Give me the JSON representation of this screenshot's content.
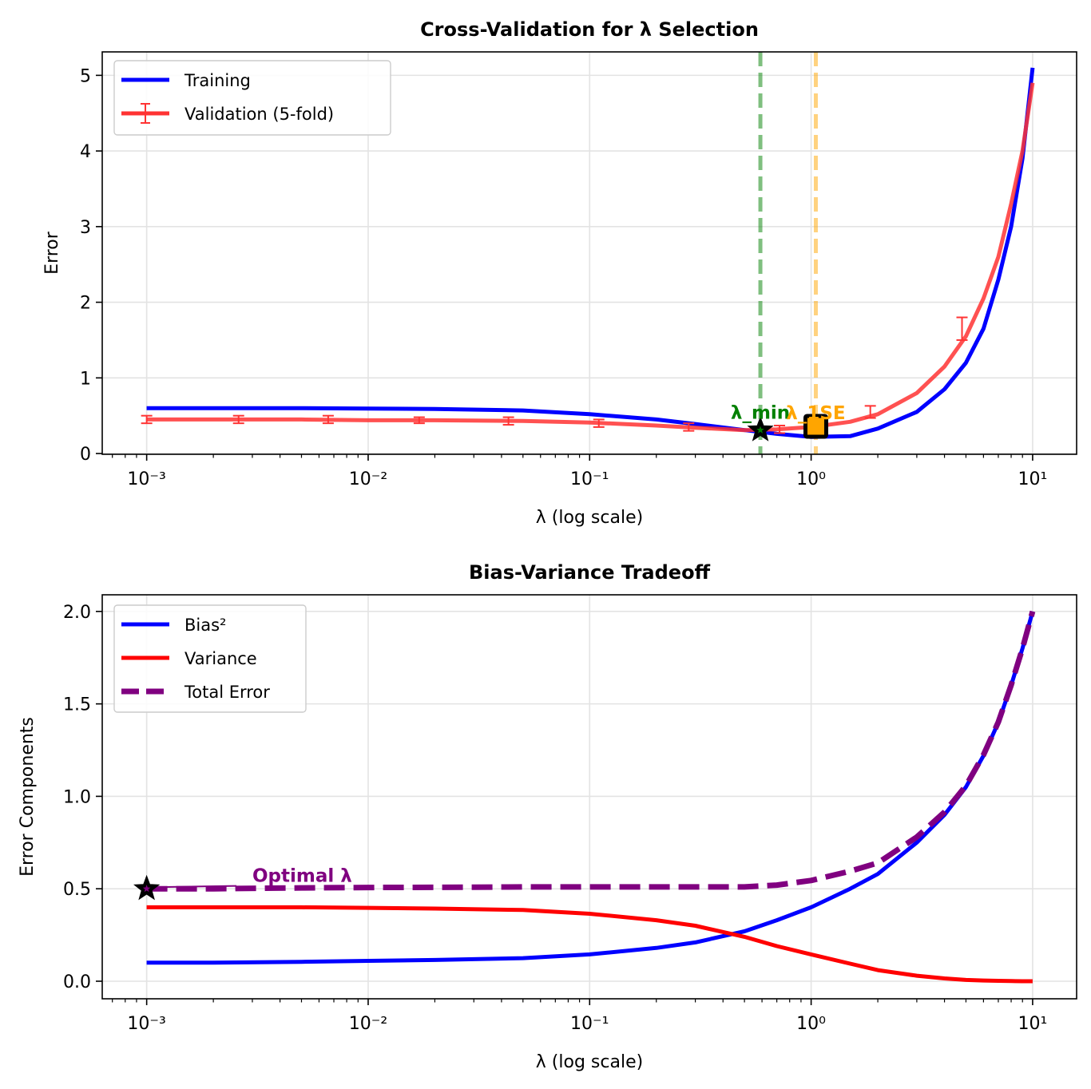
{
  "chart_data": [
    {
      "type": "line",
      "title": "Cross-Validation for λ Selection",
      "xlabel": "λ (log scale)",
      "ylabel": "Error",
      "xscale": "log",
      "xlim": [
        0.00063,
        15.8
      ],
      "ylim": [
        -0.01,
        5.31
      ],
      "xticks": [
        0.001,
        0.01,
        0.1,
        1,
        10
      ],
      "xtick_labels": [
        "10⁻³",
        "10⁻²",
        "10⁻¹",
        "10⁰",
        "10¹"
      ],
      "yticks": [
        0,
        1,
        2,
        3,
        4,
        5
      ],
      "ytick_labels": [
        "0",
        "1",
        "2",
        "3",
        "4",
        "5"
      ],
      "grid": true,
      "legend_position": "top-left",
      "x": [
        0.001,
        0.002,
        0.005,
        0.01,
        0.02,
        0.05,
        0.1,
        0.2,
        0.3,
        0.5,
        0.7,
        1,
        1.5,
        2,
        3,
        4,
        5,
        6,
        7,
        8,
        9,
        10
      ],
      "series": [
        {
          "name": "Training",
          "color": "#0000ff",
          "values": [
            0.6,
            0.6,
            0.6,
            0.595,
            0.59,
            0.57,
            0.52,
            0.45,
            0.39,
            0.31,
            0.26,
            0.22,
            0.23,
            0.33,
            0.55,
            0.85,
            1.2,
            1.65,
            2.3,
            3.0,
            3.9,
            5.1
          ]
        },
        {
          "name": "Validation (5-fold)",
          "color": "#ff3333",
          "values": [
            0.45,
            0.45,
            0.45,
            0.44,
            0.44,
            0.43,
            0.41,
            0.37,
            0.34,
            0.31,
            0.32,
            0.35,
            0.42,
            0.52,
            0.8,
            1.15,
            1.55,
            2.05,
            2.6,
            3.3,
            4.0,
            4.9
          ],
          "errorbars": {
            "x": [
              0.001,
              0.0026,
              0.0066,
              0.017,
              0.043,
              0.11,
              0.28,
              0.72,
              1.85,
              4.8
            ],
            "y": [
              0.45,
              0.45,
              0.45,
              0.44,
              0.43,
              0.4,
              0.35,
              0.32,
              0.55,
              1.65
            ],
            "err": [
              0.05,
              0.05,
              0.05,
              0.04,
              0.05,
              0.05,
              0.05,
              0.05,
              0.08,
              0.15
            ]
          }
        }
      ],
      "vlines": [
        {
          "x": 0.59,
          "color": "#008000",
          "name": "λ_min line"
        },
        {
          "x": 1.05,
          "color": "#ffa500",
          "name": "λ_1SE line"
        }
      ],
      "annotations": [
        {
          "text": "λ_min",
          "x": 0.59,
          "y": 0.31,
          "color": "#008000",
          "marker": "star"
        },
        {
          "text": "λ_1SE",
          "x": 1.05,
          "y": 0.36,
          "color": "#ffa500",
          "marker": "square"
        }
      ]
    },
    {
      "type": "line",
      "title": "Bias-Variance Tradeoff",
      "xlabel": "λ (log scale)",
      "ylabel": "Error Components",
      "xscale": "log",
      "xlim": [
        0.00063,
        15.8
      ],
      "ylim": [
        -0.095,
        2.09
      ],
      "xticks": [
        0.001,
        0.01,
        0.1,
        1,
        10
      ],
      "xtick_labels": [
        "10⁻³",
        "10⁻²",
        "10⁻¹",
        "10⁰",
        "10¹"
      ],
      "yticks": [
        0,
        0.5,
        1,
        1.5,
        2
      ],
      "ytick_labels": [
        "0.0",
        "0.5",
        "1.0",
        "1.5",
        "2.0"
      ],
      "grid": true,
      "legend_position": "top-left",
      "x": [
        0.001,
        0.002,
        0.005,
        0.01,
        0.02,
        0.05,
        0.1,
        0.2,
        0.3,
        0.5,
        0.7,
        1,
        1.5,
        2,
        3,
        4,
        5,
        6,
        7,
        8,
        9,
        10
      ],
      "series": [
        {
          "name": "Bias²",
          "color": "#0000ff",
          "style": "solid",
          "values": [
            0.1,
            0.1,
            0.105,
            0.11,
            0.115,
            0.125,
            0.145,
            0.18,
            0.21,
            0.27,
            0.33,
            0.4,
            0.5,
            0.58,
            0.75,
            0.9,
            1.05,
            1.22,
            1.4,
            1.6,
            1.8,
            2.0
          ]
        },
        {
          "name": "Variance",
          "color": "#ff0000",
          "style": "solid",
          "values": [
            0.4,
            0.4,
            0.4,
            0.397,
            0.393,
            0.385,
            0.365,
            0.33,
            0.3,
            0.24,
            0.19,
            0.145,
            0.095,
            0.06,
            0.03,
            0.015,
            0.007,
            0.004,
            0.002,
            0.001,
            0,
            0
          ]
        },
        {
          "name": "Total Error",
          "color": "#800080",
          "style": "dashed",
          "values": [
            0.5,
            0.5,
            0.505,
            0.507,
            0.508,
            0.51,
            0.51,
            0.51,
            0.51,
            0.51,
            0.52,
            0.545,
            0.595,
            0.64,
            0.78,
            0.915,
            1.057,
            1.224,
            1.402,
            1.601,
            1.8,
            2.0
          ]
        }
      ],
      "annotations": [
        {
          "text": "Optimal λ",
          "x": 0.001,
          "y": 0.5,
          "text_x": 0.003,
          "text_y": 0.55,
          "color": "#800080",
          "marker": "star"
        }
      ]
    }
  ]
}
